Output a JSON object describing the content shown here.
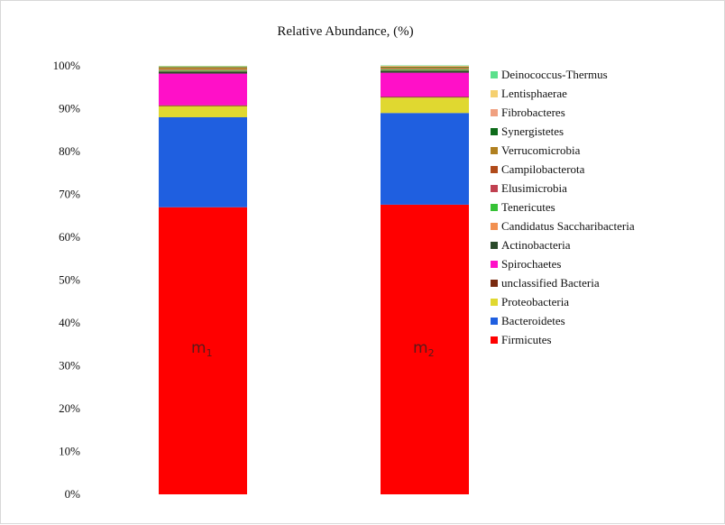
{
  "chart_data": {
    "type": "bar",
    "stacked": true,
    "title": "Relative Abundance, (%)",
    "xlabel": "",
    "ylabel": "",
    "ylim": [
      0,
      100
    ],
    "yticks": [
      "0%",
      "10%",
      "20%",
      "30%",
      "40%",
      "50%",
      "60%",
      "70%",
      "80%",
      "90%",
      "100%"
    ],
    "grid": false,
    "legend_position": "right",
    "categories": [
      {
        "base": "m",
        "sub": "1"
      },
      {
        "base": "m",
        "sub": "2"
      }
    ],
    "series": [
      {
        "name": "Firmicutes",
        "color": "#ff0000",
        "values": [
          67.0,
          67.6
        ]
      },
      {
        "name": "Bacteroidetes",
        "color": "#1f5fe0",
        "values": [
          21.0,
          21.4
        ]
      },
      {
        "name": "Proteobacteria",
        "color": "#e0d830",
        "values": [
          2.6,
          3.6
        ]
      },
      {
        "name": "unclassified Bacteria",
        "color": "#7a2a10",
        "values": [
          0.2,
          0.2
        ]
      },
      {
        "name": "Spirochaetes",
        "color": "#ff10c8",
        "values": [
          7.4,
          5.6
        ]
      },
      {
        "name": "Actinobacteria",
        "color": "#2a4a2a",
        "values": [
          0.5,
          0.5
        ]
      },
      {
        "name": "Candidatus Saccharibacteria",
        "color": "#f29050",
        "values": [
          0.1,
          0.1
        ]
      },
      {
        "name": "Tenericutes",
        "color": "#36c236",
        "values": [
          0.2,
          0.2
        ]
      },
      {
        "name": "Elusimicrobia",
        "color": "#c04050",
        "values": [
          0.1,
          0.1
        ]
      },
      {
        "name": "Campilobacterota",
        "color": "#b04a1a",
        "values": [
          0.1,
          0.1
        ]
      },
      {
        "name": "Verrucomicrobia",
        "color": "#b08020",
        "values": [
          0.4,
          0.3
        ]
      },
      {
        "name": "Synergistetes",
        "color": "#0d6b1a",
        "values": [
          0.1,
          0.1
        ]
      },
      {
        "name": "Fibrobacteres",
        "color": "#f0a080",
        "values": [
          0.1,
          0.1
        ]
      },
      {
        "name": "Lentisphaerae",
        "color": "#f5d070",
        "values": [
          0.1,
          0.1
        ]
      },
      {
        "name": "Deinococcus-Thermus",
        "color": "#5ce08c",
        "values": [
          0.1,
          0.1
        ]
      }
    ],
    "legend_order": [
      "Deinococcus-Thermus",
      "Lentisphaerae",
      "Fibrobacteres",
      "Synergistetes",
      "Verrucomicrobia",
      "Campilobacterota",
      "Elusimicrobia",
      "Tenericutes",
      "Candidatus Saccharibacteria",
      "Actinobacteria",
      "Spirochaetes",
      "unclassified Bacteria",
      "Proteobacteria",
      "Bacteroidetes",
      "Firmicutes"
    ]
  }
}
